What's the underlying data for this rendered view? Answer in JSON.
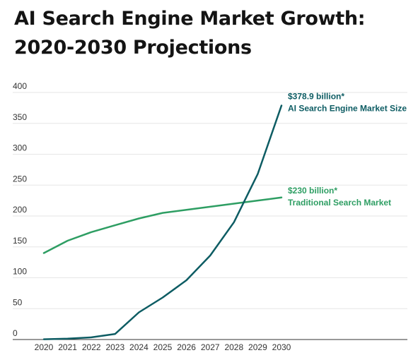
{
  "title_line1": "AI Search Engine Market Growth:",
  "title_line2": "2020-2030 Projections",
  "colors": {
    "ai": "#0d5c63",
    "traditional": "#2e9e63",
    "grid": "#e6e6e6",
    "axis": "#333333"
  },
  "chart_data": {
    "type": "line",
    "x": [
      "2020",
      "2021",
      "2022",
      "2023",
      "2024",
      "2025",
      "2026",
      "2027",
      "2028",
      "2029",
      "2030"
    ],
    "ylim": [
      0,
      400
    ],
    "yticks": [
      0,
      50,
      100,
      150,
      200,
      250,
      300,
      350,
      400
    ],
    "grid": true,
    "series": [
      {
        "key": "ai",
        "values": [
          0.5,
          1.5,
          3.5,
          9,
          44,
          68,
          96,
          136,
          190,
          268,
          378.9
        ],
        "label_value": "$378.9 billion*",
        "label_name": "AI Search Engine Market Size"
      },
      {
        "key": "traditional",
        "values": [
          140,
          160,
          174,
          185,
          196,
          205,
          210,
          215,
          220,
          225,
          230
        ],
        "label_value": "$230 billion*",
        "label_name": "Traditional Search Market"
      }
    ]
  }
}
